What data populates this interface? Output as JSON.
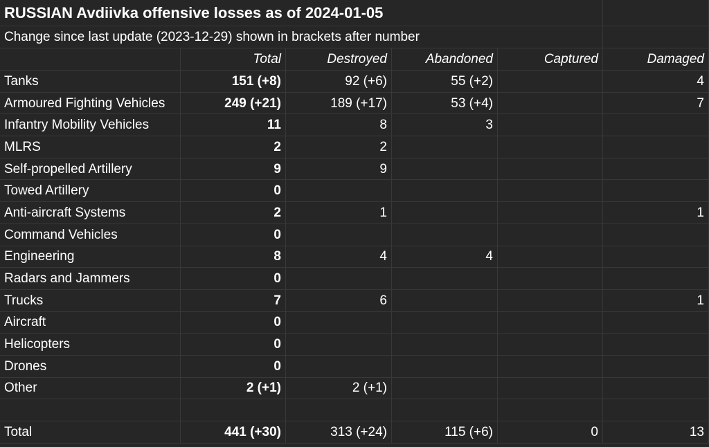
{
  "title": "RUSSIAN Avdiivka offensive losses as of 2024-01-05",
  "subtitle": "Change since last update (2023-12-29) shown in brackets after number",
  "headers": [
    "",
    "Total",
    "Destroyed",
    "Abandoned",
    "Captured",
    "Damaged"
  ],
  "rows": [
    {
      "category": "Tanks",
      "total": "151 (+8)",
      "destroyed": "92 (+6)",
      "abandoned": "55 (+2)",
      "captured": "",
      "damaged": "4"
    },
    {
      "category": "Armoured Fighting Vehicles",
      "total": "249 (+21)",
      "destroyed": "189 (+17)",
      "abandoned": "53 (+4)",
      "captured": "",
      "damaged": "7"
    },
    {
      "category": "Infantry Mobility Vehicles",
      "total": "11",
      "destroyed": "8",
      "abandoned": "3",
      "captured": "",
      "damaged": ""
    },
    {
      "category": "MLRS",
      "total": "2",
      "destroyed": "2",
      "abandoned": "",
      "captured": "",
      "damaged": ""
    },
    {
      "category": "Self-propelled Artillery",
      "total": "9",
      "destroyed": "9",
      "abandoned": "",
      "captured": "",
      "damaged": ""
    },
    {
      "category": "Towed Artillery",
      "total": "0",
      "destroyed": "",
      "abandoned": "",
      "captured": "",
      "damaged": ""
    },
    {
      "category": "Anti-aircraft Systems",
      "total": "2",
      "destroyed": "1",
      "abandoned": "",
      "captured": "",
      "damaged": "1"
    },
    {
      "category": "Command Vehicles",
      "total": "0",
      "destroyed": "",
      "abandoned": "",
      "captured": "",
      "damaged": ""
    },
    {
      "category": "Engineering",
      "total": "8",
      "destroyed": "4",
      "abandoned": "4",
      "captured": "",
      "damaged": ""
    },
    {
      "category": "Radars and Jammers",
      "total": "0",
      "destroyed": "",
      "abandoned": "",
      "captured": "",
      "damaged": ""
    },
    {
      "category": "Trucks",
      "total": "7",
      "destroyed": "6",
      "abandoned": "",
      "captured": "",
      "damaged": "1"
    },
    {
      "category": "Aircraft",
      "total": "0",
      "destroyed": "",
      "abandoned": "",
      "captured": "",
      "damaged": ""
    },
    {
      "category": "Helicopters",
      "total": "0",
      "destroyed": "",
      "abandoned": "",
      "captured": "",
      "damaged": ""
    },
    {
      "category": "Drones",
      "total": "0",
      "destroyed": "",
      "abandoned": "",
      "captured": "",
      "damaged": ""
    },
    {
      "category": "Other",
      "total": "2 (+1)",
      "destroyed": "2 (+1)",
      "abandoned": "",
      "captured": "",
      "damaged": ""
    }
  ],
  "total_row": {
    "category": "Total",
    "total": "441 (+30)",
    "destroyed": "313 (+24)",
    "abandoned": "115 (+6)",
    "captured": "0",
    "damaged": "13"
  },
  "colors": {
    "background": "#262626",
    "gridline": "#383838",
    "text": "#ffffff"
  }
}
